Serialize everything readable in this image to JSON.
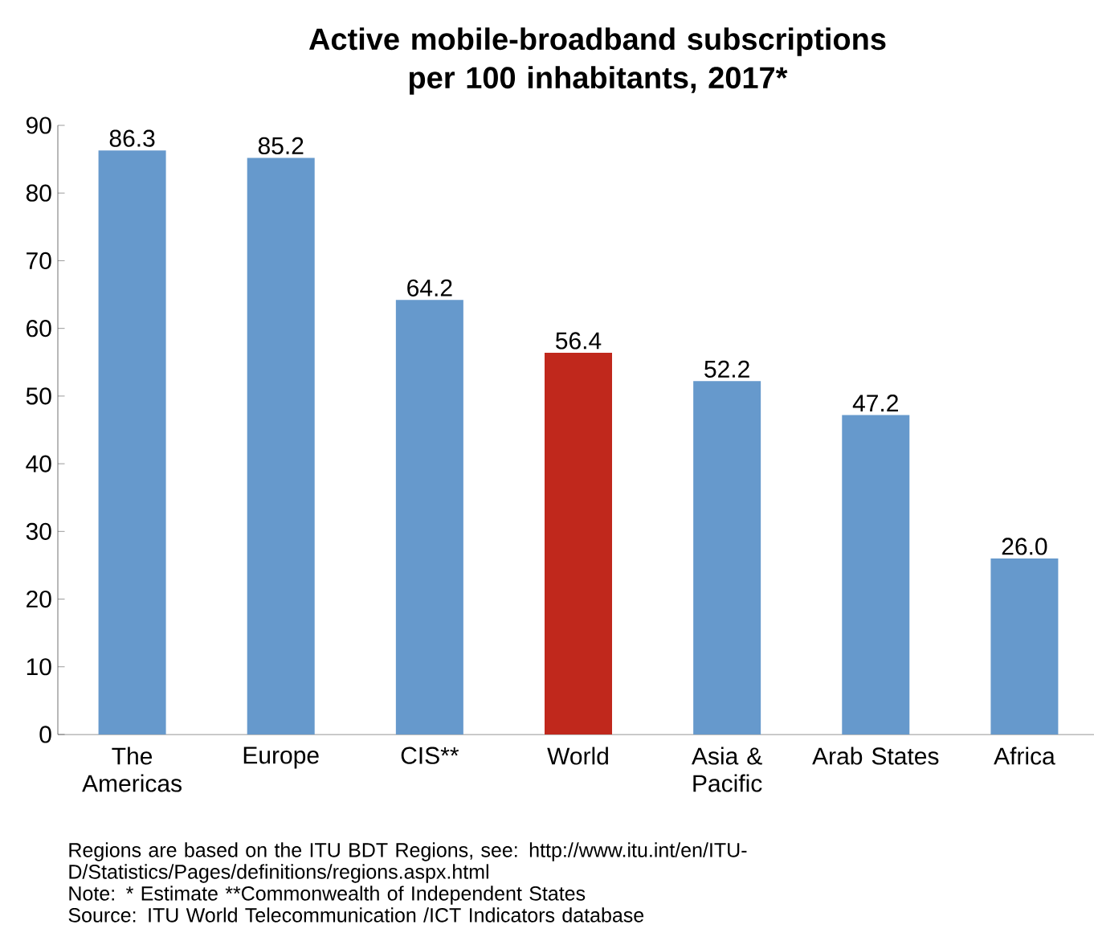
{
  "chart_data": {
    "type": "bar",
    "title": "Active mobile-broadband subscriptions per 100 inhabitants, 2017*",
    "categories": [
      "The Americas",
      "Europe",
      "CIS**",
      "World",
      "Asia & Pacific",
      "Arab States",
      "Africa"
    ],
    "values": [
      86.3,
      85.2,
      64.2,
      56.4,
      52.2,
      47.2,
      26.0
    ],
    "value_labels": [
      "86.3",
      "85.2",
      "64.2",
      "56.4",
      "52.2",
      "47.2",
      "26.0"
    ],
    "colors": [
      "#6699cc",
      "#6699cc",
      "#6699cc",
      "#c0281c",
      "#6699cc",
      "#6699cc",
      "#6699cc"
    ],
    "ylim": [
      0,
      90
    ],
    "yticks": [
      0,
      10,
      20,
      30,
      40,
      50,
      60,
      70,
      80,
      90
    ],
    "annotations": [
      "Regions are based on the ITU BDT Regions, see: http://www.itu.int/en/ITU-D/Statistics/Pages/definitions/regions.aspx.html",
      "Note: * Estimate **Commonwealth of Independent States",
      "Source:  ITU World Telecommunication /ICT Indicators database"
    ]
  }
}
